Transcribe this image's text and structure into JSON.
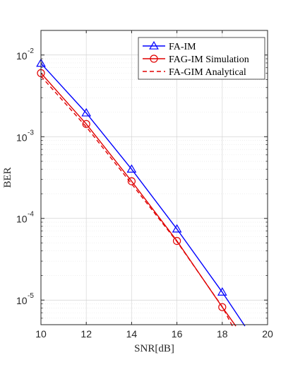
{
  "chart_data": {
    "type": "line",
    "xlabel": "SNR[dB]",
    "ylabel": "BER",
    "xlim": [
      10,
      20
    ],
    "ylim": [
      5e-06,
      0.02
    ],
    "yscale": "log",
    "grid": true,
    "legend_position": "top-right",
    "x_ticks": [
      10,
      12,
      14,
      16,
      18,
      20
    ],
    "y_ticks": [
      {
        "base": "10",
        "exp": "-5",
        "value": 1e-05
      },
      {
        "base": "10",
        "exp": "-4",
        "value": 0.0001
      },
      {
        "base": "10",
        "exp": "-3",
        "value": 0.001
      },
      {
        "base": "10",
        "exp": "-2",
        "value": 0.01
      }
    ],
    "series": [
      {
        "name": "FA-IM",
        "color": "#0000ff",
        "line": "solid",
        "marker": "triangle",
        "x": [
          10,
          12,
          14,
          16,
          18,
          19
        ],
        "y": [
          0.0079,
          0.00195,
          0.0004,
          7.4e-05,
          1.25e-05,
          4.8e-06
        ],
        "marker_x": [
          10,
          12,
          14,
          16,
          18
        ]
      },
      {
        "name": "FAG-IM Simulation",
        "color": "#e00000",
        "line": "solid",
        "marker": "circle",
        "x": [
          10,
          12,
          14,
          16,
          18,
          18.6
        ],
        "y": [
          0.006,
          0.00143,
          0.000285,
          5.3e-05,
          8.2e-06,
          4.8e-06
        ],
        "marker_x": [
          10,
          12,
          14,
          16,
          18
        ]
      },
      {
        "name": "FA-GIM Analytical",
        "color": "#e00000",
        "line": "dashed",
        "marker": "none",
        "x": [
          10,
          12,
          14,
          16,
          18,
          18.45
        ],
        "y": [
          0.0055,
          0.00132,
          0.000265,
          5.2e-05,
          8.3e-06,
          4.8e-06
        ],
        "marker_x": []
      }
    ]
  }
}
